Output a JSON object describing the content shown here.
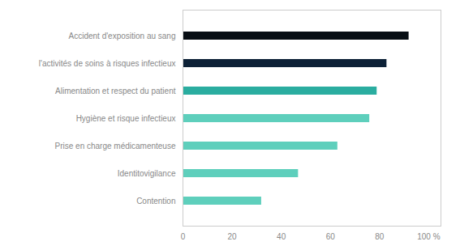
{
  "chart_data": {
    "type": "bar",
    "orientation": "horizontal",
    "categories": [
      "Contention",
      "Identitovigilance",
      "Prise en charge médicamenteuse",
      "Hygiène et risque infectieux",
      "Alimentation et respect du patient",
      "l'activités de soins à risques infectieux",
      "Accident d'exposition au sang"
    ],
    "values": [
      32,
      47,
      63,
      76,
      79,
      83,
      92
    ],
    "colors": [
      "#5ecfbc",
      "#5ecfbc",
      "#5ecfbc",
      "#5ecfbc",
      "#2aada0",
      "#0d2137",
      "#080e14"
    ],
    "xlim": [
      0,
      105
    ],
    "xticks": [
      0,
      20,
      40,
      60,
      80,
      {
        "value": 100,
        "label": "100 %"
      }
    ],
    "grid": false
  }
}
